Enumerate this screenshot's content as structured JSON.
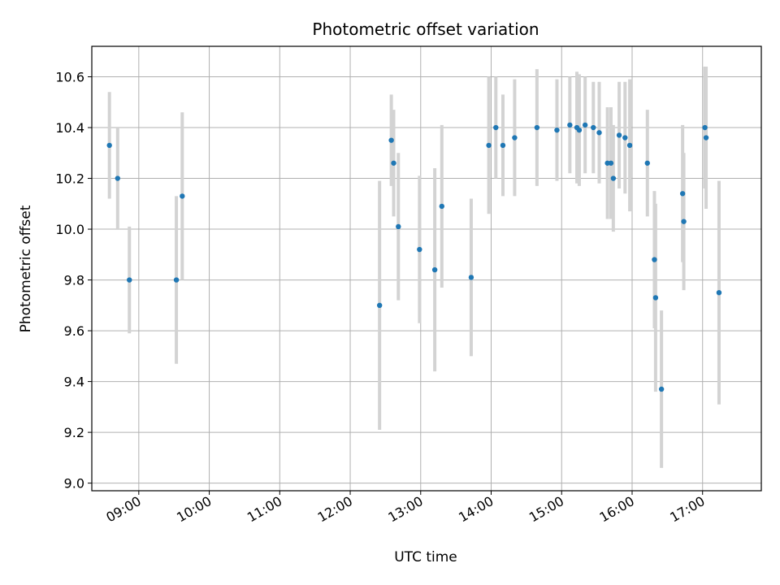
{
  "chart_data": {
    "type": "scatter",
    "title": "Photometric offset variation",
    "xlabel": "UTC time",
    "ylabel": "Photometric offset",
    "x_tick_labels": [
      "09:00",
      "10:00",
      "11:00",
      "12:00",
      "13:00",
      "14:00",
      "15:00",
      "16:00",
      "17:00"
    ],
    "y_tick_labels": [
      "9.0",
      "9.2",
      "9.4",
      "9.6",
      "9.8",
      "10.0",
      "10.2",
      "10.4",
      "10.6"
    ],
    "x_ticks": [
      "09:00",
      "10:00",
      "11:00",
      "12:00",
      "13:00",
      "14:00",
      "15:00",
      "16:00",
      "17:00"
    ],
    "y_ticks": [
      9.0,
      9.2,
      9.4,
      9.6,
      9.8,
      10.0,
      10.2,
      10.4,
      10.6
    ],
    "xlim": [
      "08:20",
      "17:50"
    ],
    "ylim": [
      8.97,
      10.72
    ],
    "grid": true,
    "colors": {
      "marker": "#1f77b4",
      "errorbar": "#d3d3d3",
      "grid": "#b0b0b0"
    },
    "points": [
      {
        "x": "08:35",
        "y": 10.33,
        "yerr": 0.21
      },
      {
        "x": "08:42",
        "y": 10.2,
        "yerr": 0.2
      },
      {
        "x": "08:52",
        "y": 9.8,
        "yerr": 0.21
      },
      {
        "x": "09:32",
        "y": 9.8,
        "yerr": 0.33
      },
      {
        "x": "09:37",
        "y": 10.13,
        "yerr": 0.33
      },
      {
        "x": "12:25",
        "y": 9.7,
        "yerr": 0.49
      },
      {
        "x": "12:35",
        "y": 10.35,
        "yerr": 0.18
      },
      {
        "x": "12:37",
        "y": 10.26,
        "yerr": 0.21
      },
      {
        "x": "12:41",
        "y": 10.01,
        "yerr": 0.29
      },
      {
        "x": "12:59",
        "y": 9.92,
        "yerr": 0.29
      },
      {
        "x": "13:12",
        "y": 9.84,
        "yerr": 0.4
      },
      {
        "x": "13:18",
        "y": 10.09,
        "yerr": 0.32
      },
      {
        "x": "13:43",
        "y": 9.81,
        "yerr": 0.31
      },
      {
        "x": "13:58",
        "y": 10.33,
        "yerr": 0.27
      },
      {
        "x": "14:04",
        "y": 10.4,
        "yerr": 0.2
      },
      {
        "x": "14:10",
        "y": 10.33,
        "yerr": 0.2
      },
      {
        "x": "14:20",
        "y": 10.36,
        "yerr": 0.23
      },
      {
        "x": "14:39",
        "y": 10.4,
        "yerr": 0.23
      },
      {
        "x": "14:56",
        "y": 10.39,
        "yerr": 0.2
      },
      {
        "x": "15:07",
        "y": 10.41,
        "yerr": 0.19
      },
      {
        "x": "15:13",
        "y": 10.4,
        "yerr": 0.22
      },
      {
        "x": "15:15",
        "y": 10.39,
        "yerr": 0.22
      },
      {
        "x": "15:20",
        "y": 10.41,
        "yerr": 0.19
      },
      {
        "x": "15:27",
        "y": 10.4,
        "yerr": 0.18
      },
      {
        "x": "15:32",
        "y": 10.38,
        "yerr": 0.2
      },
      {
        "x": "15:39",
        "y": 10.26,
        "yerr": 0.22
      },
      {
        "x": "15:42",
        "y": 10.26,
        "yerr": 0.22
      },
      {
        "x": "15:44",
        "y": 10.2,
        "yerr": 0.21
      },
      {
        "x": "15:49",
        "y": 10.37,
        "yerr": 0.21
      },
      {
        "x": "15:54",
        "y": 10.36,
        "yerr": 0.22
      },
      {
        "x": "15:58",
        "y": 10.33,
        "yerr": 0.26
      },
      {
        "x": "16:13",
        "y": 10.26,
        "yerr": 0.21
      },
      {
        "x": "16:19",
        "y": 9.88,
        "yerr": 0.27
      },
      {
        "x": "16:20",
        "y": 9.73,
        "yerr": 0.37
      },
      {
        "x": "16:25",
        "y": 9.37,
        "yerr": 0.31
      },
      {
        "x": "16:43",
        "y": 10.14,
        "yerr": 0.27
      },
      {
        "x": "16:44",
        "y": 10.03,
        "yerr": 0.27
      },
      {
        "x": "17:02",
        "y": 10.4,
        "yerr": 0.24
      },
      {
        "x": "17:03",
        "y": 10.36,
        "yerr": 0.28
      },
      {
        "x": "17:14",
        "y": 9.75,
        "yerr": 0.44
      }
    ]
  }
}
